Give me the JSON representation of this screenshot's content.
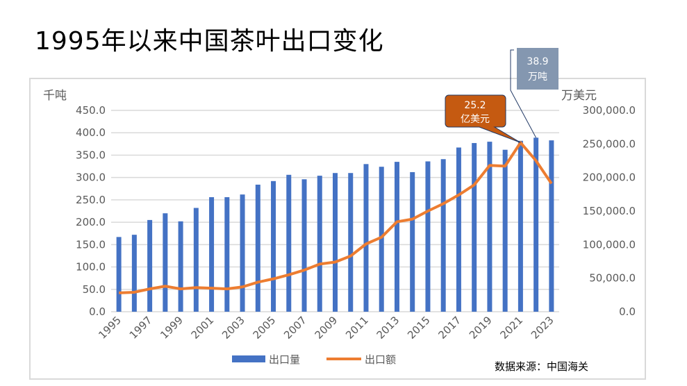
{
  "title": "1995年以来中国茶叶出口变化",
  "source": "数据来源：中国海关",
  "chart_data": {
    "type": "bar+line",
    "title": "1995年以来中国茶叶出口变化",
    "categories": [
      "1995",
      "1996",
      "1997",
      "1998",
      "1999",
      "2000",
      "2001",
      "2002",
      "2003",
      "2004",
      "2005",
      "2006",
      "2007",
      "2008",
      "2009",
      "2010",
      "2011",
      "2012",
      "2013",
      "2014",
      "2015",
      "2016",
      "2017",
      "2018",
      "2019",
      "2020",
      "2021",
      "2022",
      "2023"
    ],
    "x_tick_labels": [
      "1995",
      "1997",
      "1999",
      "2001",
      "2003",
      "2005",
      "2007",
      "2009",
      "2011",
      "2013",
      "2015",
      "2017",
      "2019",
      "2021",
      "2023"
    ],
    "y_left": {
      "label": "千吨",
      "range": [
        0,
        450
      ],
      "ticks": [
        "0.0",
        "50.0",
        "100.0",
        "150.0",
        "200.0",
        "250.0",
        "300.0",
        "350.0",
        "400.0",
        "450.0"
      ]
    },
    "y_right": {
      "label": "万美元",
      "range": [
        0,
        300000
      ],
      "ticks": [
        "0.0",
        "50,000.0",
        "100,000.0",
        "150,000.0",
        "200,000.0",
        "250,000.0",
        "300,000.0"
      ]
    },
    "grid": true,
    "legend_position": "bottom",
    "series": [
      {
        "name": "出口量",
        "type": "bar",
        "axis": "left",
        "color": "#4472c4",
        "values": [
          167,
          172,
          205,
          220,
          202,
          232,
          256,
          256,
          262,
          284,
          292,
          306,
          296,
          304,
          310,
          310,
          330,
          324,
          335,
          312,
          336,
          341,
          367,
          377,
          380,
          362,
          382,
          389,
          383
        ]
      },
      {
        "name": "出口额",
        "type": "line",
        "axis": "right",
        "color": "#ed7d31",
        "values": [
          28000,
          29000,
          34000,
          38000,
          34000,
          36000,
          35000,
          34000,
          37000,
          44000,
          49000,
          55000,
          62000,
          71000,
          74000,
          83000,
          101000,
          111000,
          134000,
          138000,
          150000,
          161000,
          174000,
          189000,
          218000,
          217000,
          252000,
          225000,
          191000
        ]
      }
    ],
    "annotations": [
      {
        "text": [
          "38.9",
          "万吨"
        ],
        "target": "2022",
        "series": "出口量",
        "color": "#8497b0"
      },
      {
        "text": [
          "25.2",
          "亿美元"
        ],
        "target": "2021",
        "series": "出口额",
        "color": "#c55a11"
      }
    ]
  }
}
